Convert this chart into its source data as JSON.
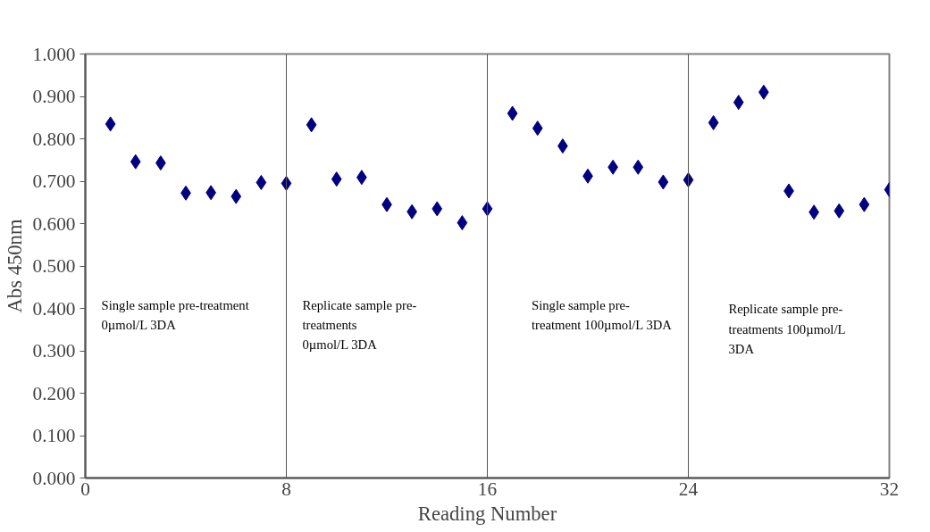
{
  "chart_data": {
    "type": "scatter",
    "xlabel": "Reading Number",
    "ylabel": "Abs 450nm",
    "x": [
      1,
      2,
      3,
      4,
      5,
      6,
      7,
      8,
      9,
      10,
      11,
      12,
      13,
      14,
      15,
      16,
      17,
      18,
      19,
      20,
      21,
      22,
      23,
      24,
      25,
      26,
      27,
      28,
      29,
      30,
      31,
      32
    ],
    "series": [
      {
        "color": "#000080",
        "values": [
          0.835,
          0.746,
          0.743,
          0.672,
          0.673,
          0.664,
          0.697,
          0.695,
          0.833,
          0.705,
          0.709,
          0.645,
          0.628,
          0.635,
          0.602,
          0.635,
          0.86,
          0.825,
          0.783,
          0.712,
          0.733,
          0.733,
          0.698,
          0.703,
          0.838,
          0.886,
          0.91,
          0.677,
          0.627,
          0.63,
          0.645,
          0.68
        ]
      }
    ],
    "xlim": [
      0,
      32
    ],
    "xticks": [
      0,
      8,
      16,
      24,
      32
    ],
    "ylim": [
      0,
      1
    ],
    "yticks": [
      {
        "value": 0,
        "label": "0.000"
      },
      {
        "value": 0.1,
        "label": "0.100"
      },
      {
        "value": 0.2,
        "label": "0.200"
      },
      {
        "value": 0.3,
        "label": "0.300"
      },
      {
        "value": 0.4,
        "label": "0.400"
      },
      {
        "value": 0.5,
        "label": "0.500"
      },
      {
        "value": 0.6,
        "label": "0.600"
      },
      {
        "value": 0.7,
        "label": "0.700"
      },
      {
        "value": 0.8,
        "label": "0.800"
      },
      {
        "value": 0.9,
        "label": "0.900"
      },
      {
        "value": 1,
        "label": "1.000"
      }
    ],
    "ref_lines": [
      {
        "axis": "x",
        "value": 8,
        "color": "#555555"
      },
      {
        "axis": "x",
        "value": 16,
        "color": "#555555"
      },
      {
        "axis": "x",
        "value": 24,
        "color": "#555555"
      }
    ],
    "annotations": [
      "Single sample pre-treatment\n0µmol/L 3DA",
      "Replicate sample pre-\ntreatments\n0µmol/L 3DA",
      "Single sample pre-\ntreatment 100µmol/L 3DA",
      "Replicate sample pre-\ntreatments 100µmol/L\n3DA"
    ],
    "marker": "diamond",
    "grid": false
  }
}
